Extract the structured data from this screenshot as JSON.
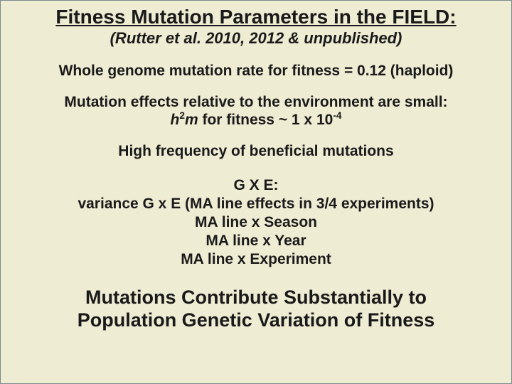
{
  "background_color": "#eeecd3",
  "border_color": "#7a8a8a",
  "text_color": "#1a1a1a",
  "font_family": "Arial",
  "title": {
    "text": "Fitness Mutation Parameters in the FIELD:",
    "fontsize": 28,
    "bold": true,
    "underline": true
  },
  "citation": {
    "text": "(Rutter et al. 2010, 2012 & unpublished)",
    "fontsize": 22,
    "italic": true,
    "bold": true
  },
  "line_rate": {
    "text": "Whole genome mutation rate for fitness = 0.12 (haploid)",
    "fontsize": 21,
    "bold": true
  },
  "effects_block": {
    "line1": "Mutation effects relative to the environment are small:",
    "formula_h": "h",
    "formula_sup1": "2",
    "formula_m": "m",
    "formula_mid": " for fitness ~ 1 x 10",
    "formula_sup2": "-4",
    "fontsize": 21,
    "bold": true
  },
  "beneficial": {
    "text": "High frequency of beneficial mutations",
    "fontsize": 21,
    "bold": true
  },
  "gxe": {
    "l1": "G X E:",
    "l2": "variance G x E (MA line effects in 3/4 experiments)",
    "l3": "MA line x Season",
    "l4": "MA line x Year",
    "l5": "MA line x Experiment",
    "fontsize": 21,
    "bold": true
  },
  "conclusion": {
    "l1": "Mutations Contribute Substantially to",
    "l2": "Population Genetic Variation of Fitness",
    "fontsize": 27,
    "bold": true
  }
}
